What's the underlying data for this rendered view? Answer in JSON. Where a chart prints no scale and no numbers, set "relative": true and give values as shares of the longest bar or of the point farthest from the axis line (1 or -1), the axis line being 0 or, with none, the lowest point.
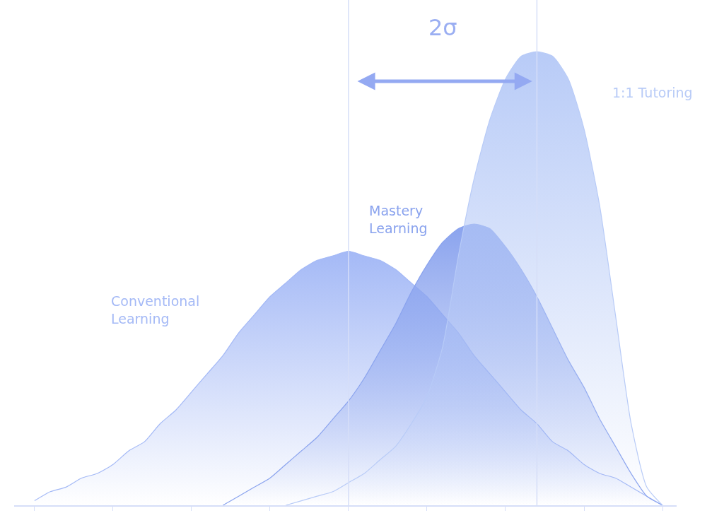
{
  "chart_data": {
    "type": "area",
    "relative": true,
    "legend": false,
    "grid": false,
    "categories": [
      null,
      null,
      null,
      null,
      null,
      null,
      null,
      null,
      null,
      null,
      null,
      null,
      null,
      null,
      null,
      null,
      null,
      null,
      null,
      null,
      null,
      null,
      null,
      null,
      null,
      null,
      null,
      null,
      null,
      null,
      null,
      null,
      null,
      null,
      null,
      null,
      null,
      null,
      null,
      null,
      null
    ],
    "series": [
      {
        "name": "Conventional Learning",
        "color": "#a4b9f6",
        "values": [
          0.01,
          0.03,
          0.04,
          0.06,
          0.07,
          0.09,
          0.12,
          0.14,
          0.18,
          0.21,
          0.25,
          0.29,
          0.33,
          0.38,
          0.42,
          0.46,
          0.49,
          0.52,
          0.54,
          0.55,
          0.56,
          0.55,
          0.54,
          0.52,
          0.49,
          0.46,
          0.42,
          0.38,
          0.33,
          0.29,
          0.25,
          0.21,
          0.18,
          0.14,
          0.12,
          0.09,
          0.07,
          0.06,
          0.04,
          0.02,
          0
        ]
      },
      {
        "name": "Mastery Learning",
        "color": "#8aa3ee",
        "values": [
          null,
          null,
          null,
          null,
          null,
          null,
          null,
          null,
          null,
          null,
          null,
          null,
          0,
          0.02,
          0.04,
          0.06,
          0.09,
          0.12,
          0.15,
          0.19,
          0.23,
          0.28,
          0.34,
          0.4,
          0.47,
          0.53,
          0.58,
          0.61,
          0.62,
          0.61,
          0.57,
          0.52,
          0.46,
          0.39,
          0.32,
          0.26,
          0.19,
          0.13,
          0.07,
          0.02,
          0
        ]
      },
      {
        "name": "1:1 Tutoring",
        "color": "#b8cbf7",
        "values": [
          null,
          null,
          null,
          null,
          null,
          null,
          null,
          null,
          null,
          null,
          null,
          null,
          null,
          null,
          null,
          null,
          0,
          0.01,
          0.02,
          0.03,
          0.05,
          0.07,
          0.1,
          0.13,
          0.18,
          0.24,
          0.35,
          0.55,
          0.72,
          0.85,
          0.94,
          0.99,
          1,
          0.99,
          0.94,
          0.83,
          0.66,
          0.42,
          0.18,
          0.04,
          0
        ]
      }
    ],
    "annotations": [
      "2σ"
    ]
  }
}
